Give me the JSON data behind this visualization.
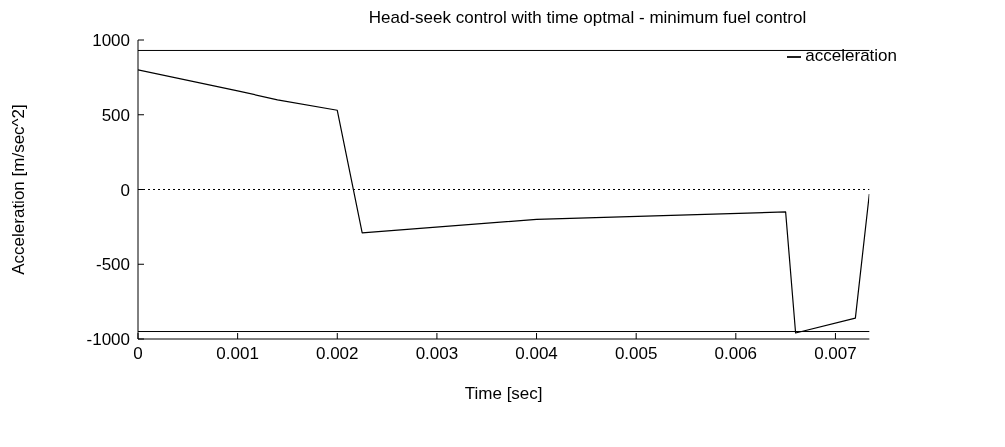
{
  "chart_data": {
    "type": "line",
    "title": "Head-seek control with time optmal - minimum fuel control",
    "xlabel": "Time [sec]",
    "ylabel": "Acceleration [m/sec^2]",
    "x": [
      0,
      0.001,
      0.0014,
      0.002,
      0.00225,
      0.004,
      0.0065,
      0.0066,
      0.0072,
      0.00734
    ],
    "series": [
      {
        "name": "acceleration",
        "color": "#000000",
        "values": [
          800,
          660,
          600,
          530,
          -290,
          -200,
          -150,
          -960,
          -860,
          -30
        ]
      }
    ],
    "xlim": [
      0,
      0.00734
    ],
    "xticks": [
      0,
      0.001,
      0.002,
      0.003,
      0.004,
      0.005,
      0.006,
      0.007
    ],
    "ylim": [
      -1000,
      1000
    ],
    "yticks": [
      -1000,
      -500,
      0,
      500,
      1000
    ],
    "ref_lines": [
      {
        "axis": "y",
        "value": 930,
        "color": "#000000",
        "line_style": "solid"
      },
      {
        "axis": "y",
        "value": 0,
        "color": "#000000",
        "line_style": "dotted"
      },
      {
        "axis": "y",
        "value": -950,
        "color": "#000000",
        "line_style": "solid"
      }
    ],
    "grid": false,
    "legend": "top right",
    "marker": "none",
    "line_style": "solid"
  }
}
